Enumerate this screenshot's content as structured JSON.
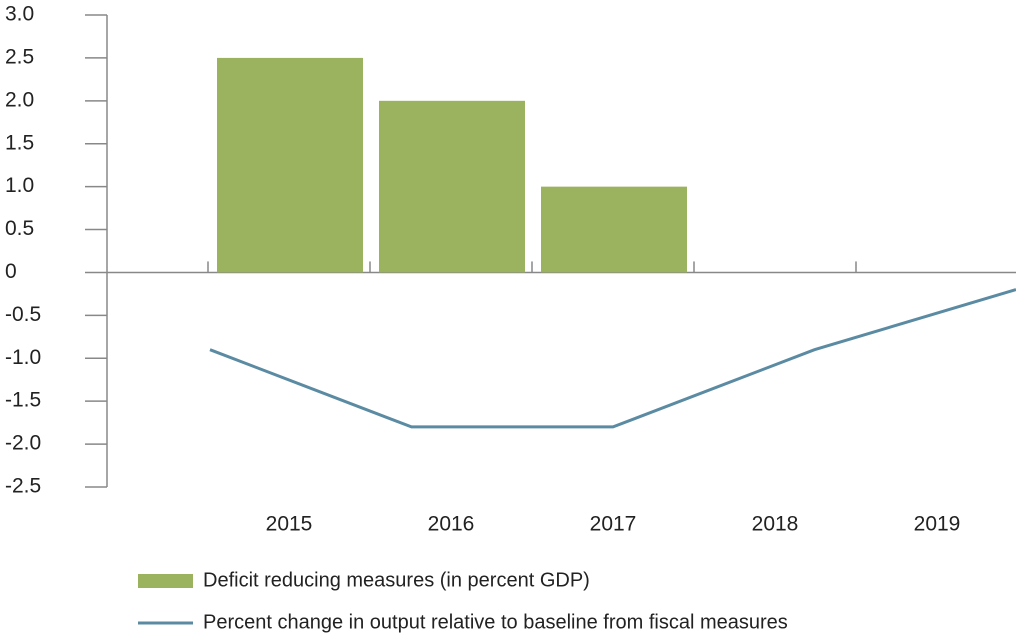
{
  "chart_data": {
    "type": "bar+line",
    "categories": [
      "2015",
      "2016",
      "2017",
      "2018",
      "2019"
    ],
    "series": [
      {
        "name": "Deficit reducing measures (in percent GDP)",
        "type": "bar",
        "color": "#9bb25f",
        "values": [
          2.5,
          2.0,
          1.0,
          null,
          null
        ]
      },
      {
        "name": "Percent change in output relative to baseline from fiscal measures",
        "type": "line",
        "color": "#5b8ba3",
        "values": [
          -0.9,
          -1.8,
          -1.8,
          -0.9,
          -0.2
        ]
      }
    ],
    "ylim": [
      -2.5,
      3.0
    ],
    "yticks": [
      {
        "value": 3.0,
        "label": "3.0"
      },
      2.5,
      {
        "value": 2.0,
        "label": "2.0"
      },
      1.5,
      {
        "value": 1.0,
        "label": "1.0"
      },
      0.5,
      0,
      -0.5,
      {
        "value": -1.0,
        "label": "-1.0"
      },
      -1.5,
      {
        "value": -2.0,
        "label": "-2.0"
      },
      -2.5
    ],
    "legend": "bottom"
  }
}
